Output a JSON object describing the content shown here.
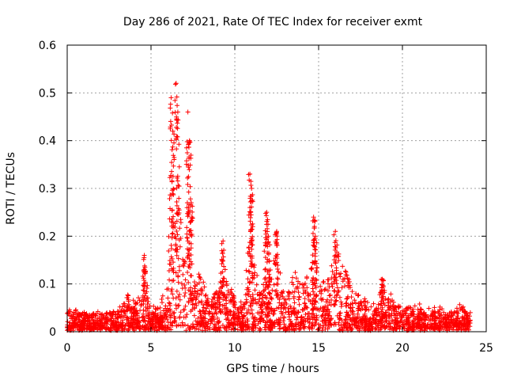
{
  "chart_data": {
    "type": "scatter",
    "title": "Day 286 of 2021, Rate Of TEC Index for receiver exmt",
    "xlabel": "GPS time / hours",
    "ylabel": "ROTI / TECUs",
    "xlim": [
      0,
      25
    ],
    "ylim": [
      0,
      0.6
    ],
    "xticks": [
      0,
      5,
      10,
      15,
      20,
      25
    ],
    "yticks": [
      0,
      0.1,
      0.2,
      0.3,
      0.4,
      0.5,
      0.6
    ],
    "xtick_labels": [
      "0",
      "5",
      "10",
      "15",
      "20",
      "25"
    ],
    "ytick_labels": [
      "0",
      "0.1",
      "0.2",
      "0.3",
      "0.4",
      "0.5",
      "0.6"
    ],
    "grid": true,
    "marker": "+",
    "series_color": "#ff0000",
    "envelope": [
      [
        0.0,
        0.04
      ],
      [
        0.5,
        0.045
      ],
      [
        1.0,
        0.04
      ],
      [
        1.5,
        0.035
      ],
      [
        2.0,
        0.045
      ],
      [
        2.5,
        0.04
      ],
      [
        3.0,
        0.04
      ],
      [
        3.5,
        0.07
      ],
      [
        3.7,
        0.1
      ],
      [
        4.0,
        0.06
      ],
      [
        4.5,
        0.09
      ],
      [
        4.6,
        0.16
      ],
      [
        5.0,
        0.06
      ],
      [
        5.5,
        0.05
      ],
      [
        6.0,
        0.12
      ],
      [
        6.2,
        0.49
      ],
      [
        6.5,
        0.52
      ],
      [
        6.7,
        0.35
      ],
      [
        7.0,
        0.15
      ],
      [
        7.2,
        0.46
      ],
      [
        7.5,
        0.12
      ],
      [
        8.0,
        0.14
      ],
      [
        8.5,
        0.06
      ],
      [
        9.0,
        0.1
      ],
      [
        9.3,
        0.19
      ],
      [
        9.5,
        0.12
      ],
      [
        10.0,
        0.08
      ],
      [
        10.5,
        0.06
      ],
      [
        10.9,
        0.33
      ],
      [
        11.2,
        0.18
      ],
      [
        11.5,
        0.09
      ],
      [
        11.9,
        0.25
      ],
      [
        12.2,
        0.13
      ],
      [
        12.5,
        0.21
      ],
      [
        13.0,
        0.06
      ],
      [
        13.5,
        0.15
      ],
      [
        14.0,
        0.11
      ],
      [
        14.5,
        0.14
      ],
      [
        14.7,
        0.24
      ],
      [
        15.0,
        0.13
      ],
      [
        15.5,
        0.12
      ],
      [
        16.0,
        0.21
      ],
      [
        16.5,
        0.16
      ],
      [
        17.0,
        0.1
      ],
      [
        17.5,
        0.08
      ],
      [
        18.0,
        0.06
      ],
      [
        18.5,
        0.07
      ],
      [
        18.8,
        0.11
      ],
      [
        19.5,
        0.07
      ],
      [
        20.0,
        0.05
      ],
      [
        20.5,
        0.05
      ],
      [
        21.0,
        0.06
      ],
      [
        21.5,
        0.05
      ],
      [
        22.0,
        0.05
      ],
      [
        22.5,
        0.05
      ],
      [
        23.0,
        0.04
      ],
      [
        23.5,
        0.06
      ],
      [
        24.0,
        0.04
      ]
    ],
    "peaks": [
      [
        4.6,
        0.16
      ],
      [
        6.2,
        0.49
      ],
      [
        6.3,
        0.42
      ],
      [
        6.5,
        0.52
      ],
      [
        6.6,
        0.46
      ],
      [
        7.2,
        0.46
      ],
      [
        7.3,
        0.4
      ],
      [
        7.4,
        0.27
      ],
      [
        9.3,
        0.19
      ],
      [
        10.9,
        0.33
      ],
      [
        11.0,
        0.3
      ],
      [
        11.9,
        0.25
      ],
      [
        12.0,
        0.2
      ],
      [
        12.5,
        0.21
      ],
      [
        14.7,
        0.24
      ],
      [
        14.8,
        0.2
      ],
      [
        16.0,
        0.21
      ],
      [
        18.8,
        0.11
      ]
    ]
  }
}
